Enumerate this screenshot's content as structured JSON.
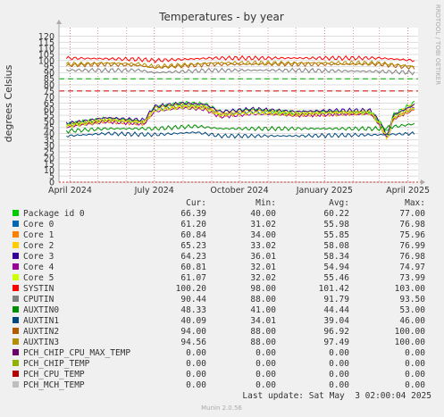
{
  "chart_data": {
    "type": "line",
    "title": "Temperatures - by year",
    "ylabel": "degrees Celsius",
    "side_label": "RRDTOOL / TOBI OETIKER",
    "ylim": [
      0,
      127
    ],
    "yticks": [
      0,
      5,
      10,
      15,
      20,
      25,
      30,
      35,
      40,
      45,
      50,
      55,
      60,
      65,
      70,
      75,
      80,
      85,
      90,
      95,
      100,
      105,
      110,
      115,
      120
    ],
    "x_start": "2024-03-20",
    "x_end": "2025-04-12",
    "xticks": [
      {
        "label": "April 2024",
        "date": "2024-04-01"
      },
      {
        "label": "July 2024",
        "date": "2024-07-01"
      },
      {
        "label": "October 2024",
        "date": "2024-10-01"
      },
      {
        "label": "January 2025",
        "date": "2025-01-01"
      },
      {
        "label": "April 2025",
        "date": "2025-04-01"
      }
    ],
    "month_lines": [
      "2024-05-01",
      "2024-06-01",
      "2024-08-01",
      "2024-09-01",
      "2024-11-01",
      "2024-12-01",
      "2025-02-01",
      "2025-03-01"
    ],
    "thresholds": [
      {
        "value": 85,
        "color": "#00aa00"
      },
      {
        "value": 75,
        "color": "#cc0000"
      }
    ],
    "data_start": "2024-03-28",
    "columns": [
      "Cur:",
      "Min:",
      "Avg:",
      "Max:"
    ],
    "series": [
      {
        "name": "Package id 0",
        "color": "#00cc00",
        "cur": "66.39",
        "min": "40.00",
        "avg": "60.22",
        "max": "77.00",
        "values": [
          [
            "2024-03-28",
            48
          ],
          [
            "2024-05-10",
            52
          ],
          [
            "2024-06-20",
            50
          ],
          [
            "2024-07-01",
            62
          ],
          [
            "2024-08-01",
            65
          ],
          [
            "2024-08-25",
            64
          ],
          [
            "2024-09-10",
            58
          ],
          [
            "2024-10-15",
            60
          ],
          [
            "2024-12-01",
            57
          ],
          [
            "2025-01-15",
            58
          ],
          [
            "2025-02-20",
            58
          ],
          [
            "2025-03-01",
            50
          ],
          [
            "2025-03-10",
            40
          ],
          [
            "2025-03-16",
            55
          ],
          [
            "2025-04-09",
            66
          ]
        ]
      },
      {
        "name": "Core 0",
        "color": "#0066b3",
        "cur": "61.20",
        "min": "31.02",
        "avg": "55.98",
        "max": "76.98",
        "values": [
          [
            "2024-03-28",
            47
          ],
          [
            "2024-05-10",
            51
          ],
          [
            "2024-06-20",
            49
          ],
          [
            "2024-07-01",
            60
          ],
          [
            "2024-08-01",
            63
          ],
          [
            "2024-08-25",
            62
          ],
          [
            "2024-09-10",
            56
          ],
          [
            "2024-10-15",
            58
          ],
          [
            "2024-12-01",
            56
          ],
          [
            "2025-01-15",
            57
          ],
          [
            "2025-02-20",
            57
          ],
          [
            "2025-03-01",
            48
          ],
          [
            "2025-03-10",
            35
          ],
          [
            "2025-03-16",
            53
          ],
          [
            "2025-04-09",
            61
          ]
        ]
      },
      {
        "name": "Core 1",
        "color": "#ff8000",
        "cur": "60.84",
        "min": "34.00",
        "avg": "55.85",
        "max": "75.96",
        "values": [
          [
            "2024-03-28",
            46
          ],
          [
            "2024-05-10",
            50
          ],
          [
            "2024-06-20",
            48
          ],
          [
            "2024-07-01",
            59
          ],
          [
            "2024-08-01",
            62
          ],
          [
            "2024-08-25",
            61
          ],
          [
            "2024-09-10",
            55
          ],
          [
            "2024-10-15",
            57
          ],
          [
            "2024-12-01",
            55
          ],
          [
            "2025-01-15",
            56
          ],
          [
            "2025-02-20",
            56
          ],
          [
            "2025-03-01",
            47
          ],
          [
            "2025-03-10",
            36
          ],
          [
            "2025-03-16",
            52
          ],
          [
            "2025-04-09",
            61
          ]
        ]
      },
      {
        "name": "Core 2",
        "color": "#ffcc00",
        "cur": "65.23",
        "min": "33.02",
        "avg": "58.08",
        "max": "76.99",
        "values": [
          [
            "2024-03-28",
            47
          ],
          [
            "2024-05-10",
            52
          ],
          [
            "2024-06-20",
            50
          ],
          [
            "2024-07-01",
            61
          ],
          [
            "2024-08-01",
            64
          ],
          [
            "2024-08-25",
            63
          ],
          [
            "2024-09-10",
            57
          ],
          [
            "2024-10-15",
            59
          ],
          [
            "2024-12-01",
            57
          ],
          [
            "2025-01-15",
            58
          ],
          [
            "2025-02-20",
            58
          ],
          [
            "2025-03-01",
            49
          ],
          [
            "2025-03-10",
            36
          ],
          [
            "2025-03-16",
            54
          ],
          [
            "2025-04-09",
            65
          ]
        ]
      },
      {
        "name": "Core 3",
        "color": "#330099",
        "cur": "64.23",
        "min": "36.01",
        "avg": "58.34",
        "max": "76.98",
        "values": [
          [
            "2024-03-28",
            48
          ],
          [
            "2024-05-10",
            53
          ],
          [
            "2024-06-20",
            51
          ],
          [
            "2024-07-01",
            62
          ],
          [
            "2024-08-01",
            65
          ],
          [
            "2024-08-25",
            64
          ],
          [
            "2024-09-10",
            58
          ],
          [
            "2024-10-15",
            60
          ],
          [
            "2024-12-01",
            58
          ],
          [
            "2025-01-15",
            59
          ],
          [
            "2025-02-20",
            59
          ],
          [
            "2025-03-01",
            50
          ],
          [
            "2025-03-10",
            38
          ],
          [
            "2025-03-16",
            55
          ],
          [
            "2025-04-09",
            64
          ]
        ]
      },
      {
        "name": "Core 4",
        "color": "#990099",
        "cur": "60.81",
        "min": "32.01",
        "avg": "54.94",
        "max": "74.97",
        "values": [
          [
            "2024-03-28",
            45
          ],
          [
            "2024-05-10",
            50
          ],
          [
            "2024-06-20",
            48
          ],
          [
            "2024-07-01",
            58
          ],
          [
            "2024-08-01",
            61
          ],
          [
            "2024-08-25",
            60
          ],
          [
            "2024-09-10",
            54
          ],
          [
            "2024-10-15",
            56
          ],
          [
            "2024-12-01",
            55
          ],
          [
            "2025-01-15",
            56
          ],
          [
            "2025-02-20",
            56
          ],
          [
            "2025-03-01",
            47
          ],
          [
            "2025-03-10",
            35
          ],
          [
            "2025-03-16",
            52
          ],
          [
            "2025-04-09",
            61
          ]
        ]
      },
      {
        "name": "Core 5",
        "color": "#ccff00",
        "cur": "61.07",
        "min": "32.02",
        "avg": "55.46",
        "max": "73.99",
        "values": [
          [
            "2024-03-28",
            46
          ],
          [
            "2024-05-10",
            51
          ],
          [
            "2024-06-20",
            49
          ],
          [
            "2024-07-01",
            59
          ],
          [
            "2024-08-01",
            62
          ],
          [
            "2024-08-25",
            61
          ],
          [
            "2024-09-10",
            55
          ],
          [
            "2024-10-15",
            57
          ],
          [
            "2024-12-01",
            56
          ],
          [
            "2025-01-15",
            57
          ],
          [
            "2025-02-20",
            57
          ],
          [
            "2025-03-01",
            48
          ],
          [
            "2025-03-10",
            36
          ],
          [
            "2025-03-16",
            53
          ],
          [
            "2025-04-09",
            61
          ]
        ]
      },
      {
        "name": "SYSTIN",
        "color": "#ff0000",
        "cur": "100.20",
        "min": "98.00",
        "avg": "101.42",
        "max": "103.00",
        "values": [
          [
            "2024-03-28",
            102
          ],
          [
            "2024-06-15",
            101
          ],
          [
            "2024-07-01",
            100
          ],
          [
            "2024-09-01",
            102
          ],
          [
            "2024-12-01",
            102
          ],
          [
            "2025-03-01",
            102
          ],
          [
            "2025-04-09",
            100
          ]
        ]
      },
      {
        "name": "CPUTIN",
        "color": "#808080",
        "cur": "90.44",
        "min": "88.00",
        "avg": "91.79",
        "max": "93.50",
        "values": [
          [
            "2024-03-28",
            92
          ],
          [
            "2024-06-15",
            92
          ],
          [
            "2024-07-01",
            90
          ],
          [
            "2024-09-01",
            92
          ],
          [
            "2024-12-01",
            92
          ],
          [
            "2025-03-01",
            91
          ],
          [
            "2025-04-09",
            90
          ]
        ]
      },
      {
        "name": "AUXTIN0",
        "color": "#008f00",
        "cur": "48.33",
        "min": "41.00",
        "avg": "44.44",
        "max": "53.00",
        "values": [
          [
            "2024-03-28",
            42
          ],
          [
            "2024-05-10",
            44
          ],
          [
            "2024-07-01",
            44
          ],
          [
            "2024-08-15",
            46
          ],
          [
            "2024-09-10",
            44
          ],
          [
            "2024-12-01",
            44
          ],
          [
            "2025-03-01",
            44
          ],
          [
            "2025-04-09",
            48
          ]
        ]
      },
      {
        "name": "AUXTIN1",
        "color": "#00487d",
        "cur": "40.09",
        "min": "34.01",
        "avg": "39.04",
        "max": "46.00",
        "values": [
          [
            "2024-03-28",
            38
          ],
          [
            "2024-05-10",
            40
          ],
          [
            "2024-07-01",
            39
          ],
          [
            "2024-08-15",
            41
          ],
          [
            "2024-09-10",
            38
          ],
          [
            "2024-12-01",
            38
          ],
          [
            "2025-03-01",
            39
          ],
          [
            "2025-04-09",
            40
          ]
        ]
      },
      {
        "name": "AUXTIN2",
        "color": "#b35a00",
        "cur": "94.00",
        "min": "88.00",
        "avg": "96.92",
        "max": "100.00",
        "values": [
          [
            "2024-03-28",
            96
          ],
          [
            "2024-05-10",
            97
          ],
          [
            "2024-06-15",
            96
          ],
          [
            "2024-07-01",
            94
          ],
          [
            "2024-09-01",
            97
          ],
          [
            "2024-12-01",
            97
          ],
          [
            "2025-03-01",
            97
          ],
          [
            "2025-04-09",
            94
          ]
        ]
      },
      {
        "name": "AUXTIN3",
        "color": "#b38f00",
        "cur": "94.56",
        "min": "88.00",
        "avg": "97.49",
        "max": "100.00",
        "values": [
          [
            "2024-03-28",
            97
          ],
          [
            "2024-05-10",
            98
          ],
          [
            "2024-06-15",
            97
          ],
          [
            "2024-07-01",
            95
          ],
          [
            "2024-09-01",
            98
          ],
          [
            "2024-12-01",
            98
          ],
          [
            "2025-03-01",
            98
          ],
          [
            "2025-04-09",
            95
          ]
        ]
      },
      {
        "name": "PCH_CHIP_CPU_MAX_TEMP",
        "color": "#6b006b",
        "cur": "0.00",
        "min": "0.00",
        "avg": "0.00",
        "max": "0.00",
        "values": [
          [
            "2024-03-28",
            0
          ],
          [
            "2025-04-09",
            0
          ]
        ]
      },
      {
        "name": "PCH_CHIP_TEMP",
        "color": "#8fb300",
        "cur": "0.00",
        "min": "0.00",
        "avg": "0.00",
        "max": "0.00",
        "values": [
          [
            "2024-03-28",
            0
          ],
          [
            "2025-04-09",
            0
          ]
        ]
      },
      {
        "name": "PCH_CPU_TEMP",
        "color": "#b30000",
        "cur": "0.00",
        "min": "0.00",
        "avg": "0.00",
        "max": "0.00",
        "values": [
          [
            "2024-03-28",
            0
          ],
          [
            "2025-04-09",
            0
          ]
        ]
      },
      {
        "name": "PCH_MCH_TEMP",
        "color": "#bebebe",
        "cur": "0.00",
        "min": "0.00",
        "avg": "0.00",
        "max": "0.00",
        "values": [
          [
            "2024-03-28",
            0
          ],
          [
            "2025-04-09",
            0
          ]
        ]
      }
    ],
    "last_update": "Last update: Sat May  3 02:00:04 2025",
    "footer": "Munin 2.0.56"
  }
}
